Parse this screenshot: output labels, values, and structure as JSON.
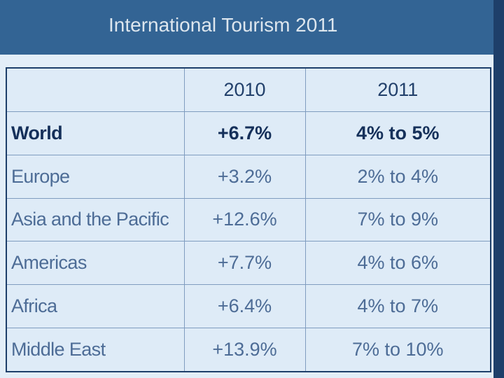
{
  "header": {
    "title": "International Tourism 2011"
  },
  "table": {
    "columns": [
      "2010",
      "2011"
    ],
    "rows": [
      [
        "World",
        "+6.7%",
        "4% to 5%"
      ],
      [
        "Europe",
        "+3.2%",
        "2% to 4%"
      ],
      [
        "Asia and the Pacific",
        "+12.6%",
        "7% to 9%"
      ],
      [
        "Americas",
        "+7.7%",
        "4% to 6%"
      ],
      [
        "Africa",
        "+6.4%",
        "4% to 7%"
      ],
      [
        "Middle East",
        "+13.9%",
        "7% to 10%"
      ]
    ]
  }
}
